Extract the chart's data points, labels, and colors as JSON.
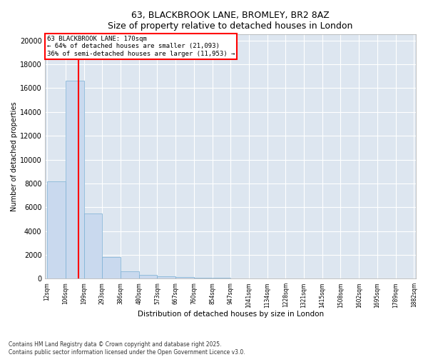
{
  "title_line1": "63, BLACKBROOK LANE, BROMLEY, BR2 8AZ",
  "title_line2": "Size of property relative to detached houses in London",
  "xlabel": "Distribution of detached houses by size in London",
  "ylabel": "Number of detached properties",
  "bar_color": "#c9d9ee",
  "bar_edge_color": "#7aafd4",
  "background_color": "#dde6f0",
  "grid_color": "white",
  "property_line_color": "red",
  "property_size": 170,
  "annotation_text": "63 BLACKBROOK LANE: 170sqm\n← 64% of detached houses are smaller (21,093)\n36% of semi-detached houses are larger (11,953) →",
  "annotation_box_color": "white",
  "annotation_box_edge": "red",
  "bins_left_edges": [
    12,
    106,
    199,
    293,
    386,
    480,
    573,
    667,
    760,
    854,
    947,
    1041,
    1134,
    1228,
    1321,
    1415,
    1508,
    1602,
    1695,
    1789
  ],
  "bin_width": 93,
  "bin_heights": [
    8150,
    16650,
    5450,
    1800,
    620,
    330,
    200,
    130,
    80,
    55,
    40,
    30,
    20,
    15,
    12,
    10,
    8,
    5,
    3,
    2
  ],
  "xtick_labels": [
    "12sqm",
    "106sqm",
    "199sqm",
    "293sqm",
    "386sqm",
    "480sqm",
    "573sqm",
    "667sqm",
    "760sqm",
    "854sqm",
    "947sqm",
    "1041sqm",
    "1134sqm",
    "1228sqm",
    "1321sqm",
    "1415sqm",
    "1508sqm",
    "1602sqm",
    "1695sqm",
    "1789sqm",
    "1882sqm"
  ],
  "ylim": [
    0,
    20500
  ],
  "yticks": [
    0,
    2000,
    4000,
    6000,
    8000,
    10000,
    12000,
    14000,
    16000,
    18000,
    20000
  ],
  "footer_line1": "Contains HM Land Registry data © Crown copyright and database right 2025.",
  "footer_line2": "Contains public sector information licensed under the Open Government Licence v3.0."
}
